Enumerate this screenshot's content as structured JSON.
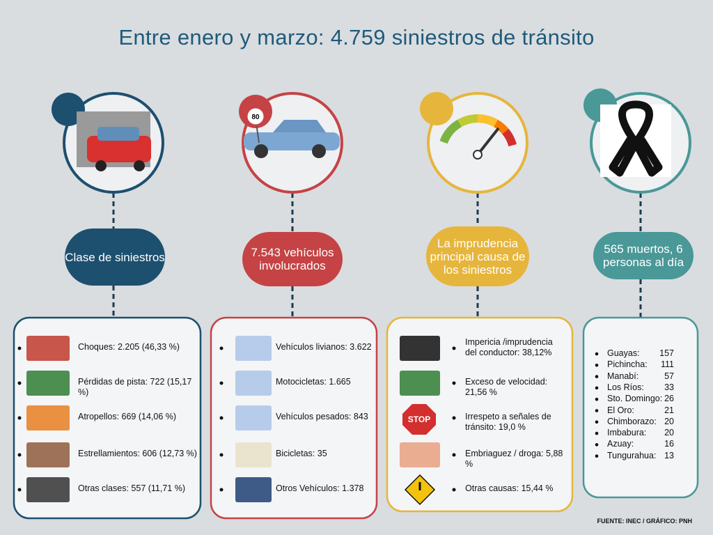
{
  "title": "Entre enero y marzo: 4.759 siniestros de tránsito",
  "badge": "80",
  "columns": [
    {
      "heading": "Clase de siniestros",
      "items": [
        "Choques: 2.205 (46,33 %)",
        "Pérdidas de pista: 722 (15,17 %)",
        "Atropellos: 669 (14,06 %)",
        "Estrellamientos: 606 (12,73 %)",
        "Otras clases:  557 (11,71 %)"
      ]
    },
    {
      "heading": "7.543 vehículos involucrados",
      "items": [
        "Vehículos livianos: 3.622",
        "Motocicletas: 1.665",
        "Vehículos pesados: 843",
        "Bicicletas: 35",
        "Otros Vehículos: 1.378"
      ]
    },
    {
      "heading": "La imprudencia principal causa de los siniestros",
      "items": [
        "Impericia /imprudencia del conductor: 38,12%",
        "Exceso de velocidad: 21,56 %",
        "Irrespeto a señales de tránsito: 19,0 %",
        "Embriaguez / droga: 5,88 %",
        "Otras causas: 15,44 %"
      ],
      "stop": "STOP"
    },
    {
      "heading": "565 muertos, 6 personas al día",
      "items": [
        {
          "name": "Guayas:",
          "value": 157
        },
        {
          "name": "Pichincha:",
          "value": 111
        },
        {
          "name": "Manabí:",
          "value": 57
        },
        {
          "name": "Los Ríos:",
          "value": 33
        },
        {
          "name": "Sto. Domingo:",
          "value": 26
        },
        {
          "name": "El Oro:",
          "value": 21
        },
        {
          "name": "Chimborazo:",
          "value": 20
        },
        {
          "name": "Imbabura:",
          "value": 20
        },
        {
          "name": "Azuay:",
          "value": 16
        },
        {
          "name": "Tungurahua:",
          "value": 13
        }
      ]
    }
  ],
  "footer": "FUENTE: INEC / GRÁFICO: PNH"
}
